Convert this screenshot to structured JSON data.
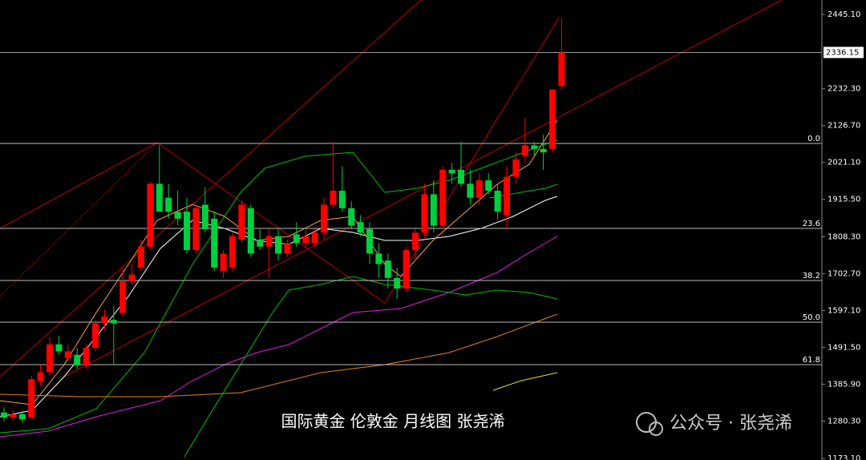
{
  "chart_data": {
    "type": "candlestick",
    "ylim": [
      1168.7,
      2486.4
    ],
    "yticks": [
      {
        "value": 2445.1,
        "label": "2445.10"
      },
      {
        "value": 2232.3,
        "label": "2232.30"
      },
      {
        "value": 2126.7,
        "label": "2126.70"
      },
      {
        "value": 2021.1,
        "label": "2021.10"
      },
      {
        "value": 1915.5,
        "label": "1915.50"
      },
      {
        "value": 1808.3,
        "label": "1808.30"
      },
      {
        "value": 1702.7,
        "label": "1702.70"
      },
      {
        "value": 1597.1,
        "label": "1597.10"
      },
      {
        "value": 1491.5,
        "label": "1491.50"
      },
      {
        "value": 1385.9,
        "label": "1385.90"
      },
      {
        "value": 1280.3,
        "label": "1280.30"
      },
      {
        "value": 1173.1,
        "label": "1173.10"
      }
    ],
    "current_price": {
      "value": 2336.15,
      "label": "2336.15"
    },
    "levels": [
      {
        "value": 2075.5,
        "label": "0.0"
      },
      {
        "value": 1832.1,
        "label": "23.6"
      },
      {
        "value": 1682.9,
        "label": "38.2"
      },
      {
        "value": 1563.5,
        "label": "50.0"
      },
      {
        "value": 1441.9,
        "label": "61.8"
      }
    ],
    "up_color": "#ff0000",
    "down_color": "#00d040",
    "candles": [
      {
        "o": 1305,
        "h": 1320,
        "l": 1280,
        "c": 1290
      },
      {
        "o": 1290,
        "h": 1310,
        "l": 1280,
        "c": 1300
      },
      {
        "o": 1300,
        "h": 1310,
        "l": 1275,
        "c": 1285
      },
      {
        "o": 1290,
        "h": 1410,
        "l": 1285,
        "c": 1400
      },
      {
        "o": 1395,
        "h": 1440,
        "l": 1380,
        "c": 1420
      },
      {
        "o": 1420,
        "h": 1520,
        "l": 1410,
        "c": 1500
      },
      {
        "o": 1500,
        "h": 1525,
        "l": 1470,
        "c": 1480
      },
      {
        "o": 1460,
        "h": 1500,
        "l": 1450,
        "c": 1480
      },
      {
        "o": 1470,
        "h": 1490,
        "l": 1430,
        "c": 1440
      },
      {
        "o": 1440,
        "h": 1500,
        "l": 1430,
        "c": 1490
      },
      {
        "o": 1490,
        "h": 1570,
        "l": 1480,
        "c": 1560
      },
      {
        "o": 1560,
        "h": 1600,
        "l": 1540,
        "c": 1580
      },
      {
        "o": 1570,
        "h": 1610,
        "l": 1440,
        "c": 1560
      },
      {
        "o": 1590,
        "h": 1720,
        "l": 1580,
        "c": 1680
      },
      {
        "o": 1680,
        "h": 1730,
        "l": 1670,
        "c": 1700
      },
      {
        "o": 1720,
        "h": 1800,
        "l": 1710,
        "c": 1780
      },
      {
        "o": 1780,
        "h": 1965,
        "l": 1770,
        "c": 1960
      },
      {
        "o": 1960,
        "h": 2070,
        "l": 1880,
        "c": 1880
      },
      {
        "o": 1920,
        "h": 1960,
        "l": 1860,
        "c": 1880
      },
      {
        "o": 1880,
        "h": 1940,
        "l": 1840,
        "c": 1860
      },
      {
        "o": 1880,
        "h": 1920,
        "l": 1760,
        "c": 1770
      },
      {
        "o": 1770,
        "h": 1900,
        "l": 1760,
        "c": 1890
      },
      {
        "o": 1900,
        "h": 1950,
        "l": 1820,
        "c": 1830
      },
      {
        "o": 1860,
        "h": 1880,
        "l": 1710,
        "c": 1720
      },
      {
        "o": 1710,
        "h": 1770,
        "l": 1690,
        "c": 1760
      },
      {
        "o": 1720,
        "h": 1820,
        "l": 1710,
        "c": 1810
      },
      {
        "o": 1800,
        "h": 1910,
        "l": 1790,
        "c": 1900
      },
      {
        "o": 1890,
        "h": 1900,
        "l": 1750,
        "c": 1760
      },
      {
        "o": 1800,
        "h": 1830,
        "l": 1770,
        "c": 1780
      },
      {
        "o": 1780,
        "h": 1830,
        "l": 1690,
        "c": 1810
      },
      {
        "o": 1810,
        "h": 1830,
        "l": 1740,
        "c": 1760
      },
      {
        "o": 1760,
        "h": 1800,
        "l": 1750,
        "c": 1790
      },
      {
        "o": 1815,
        "h": 1850,
        "l": 1780,
        "c": 1790
      },
      {
        "o": 1790,
        "h": 1830,
        "l": 1780,
        "c": 1810
      },
      {
        "o": 1790,
        "h": 1830,
        "l": 1780,
        "c": 1820
      },
      {
        "o": 1820,
        "h": 1920,
        "l": 1800,
        "c": 1900
      },
      {
        "o": 1900,
        "h": 2080,
        "l": 1890,
        "c": 1940
      },
      {
        "o": 1940,
        "h": 2010,
        "l": 1880,
        "c": 1890
      },
      {
        "o": 1890,
        "h": 1910,
        "l": 1830,
        "c": 1840
      },
      {
        "o": 1850,
        "h": 1870,
        "l": 1810,
        "c": 1820
      },
      {
        "o": 1830,
        "h": 1850,
        "l": 1730,
        "c": 1760
      },
      {
        "o": 1760,
        "h": 1790,
        "l": 1690,
        "c": 1730
      },
      {
        "o": 1740,
        "h": 1760,
        "l": 1660,
        "c": 1690
      },
      {
        "o": 1690,
        "h": 1720,
        "l": 1630,
        "c": 1660
      },
      {
        "o": 1660,
        "h": 1780,
        "l": 1650,
        "c": 1770
      },
      {
        "o": 1770,
        "h": 1830,
        "l": 1740,
        "c": 1820
      },
      {
        "o": 1820,
        "h": 1960,
        "l": 1810,
        "c": 1930
      },
      {
        "o": 1930,
        "h": 1970,
        "l": 1820,
        "c": 1840
      },
      {
        "o": 1840,
        "h": 2010,
        "l": 1830,
        "c": 2000
      },
      {
        "o": 2000,
        "h": 2020,
        "l": 1960,
        "c": 1990
      },
      {
        "o": 2000,
        "h": 2080,
        "l": 1950,
        "c": 1960
      },
      {
        "o": 1960,
        "h": 2000,
        "l": 1900,
        "c": 1920
      },
      {
        "o": 1920,
        "h": 1990,
        "l": 1900,
        "c": 1970
      },
      {
        "o": 1970,
        "h": 1990,
        "l": 1930,
        "c": 1940
      },
      {
        "o": 1940,
        "h": 1960,
        "l": 1860,
        "c": 1880
      },
      {
        "o": 1870,
        "h": 2010,
        "l": 1830,
        "c": 1980
      },
      {
        "o": 1980,
        "h": 2050,
        "l": 1960,
        "c": 2030
      },
      {
        "o": 2040,
        "h": 2150,
        "l": 2020,
        "c": 2070
      },
      {
        "o": 2070,
        "h": 2080,
        "l": 2040,
        "c": 2060
      },
      {
        "o": 2060,
        "h": 2100,
        "l": 2000,
        "c": 2050
      },
      {
        "o": 2060,
        "h": 2230,
        "l": 2050,
        "c": 2230
      },
      {
        "o": 2240,
        "h": 2435,
        "l": 2230,
        "c": 2336.15
      }
    ]
  },
  "caption": "国际黄金 伦敦金 月线图  张尧浠",
  "watermark": "公众号 · 张尧浠"
}
